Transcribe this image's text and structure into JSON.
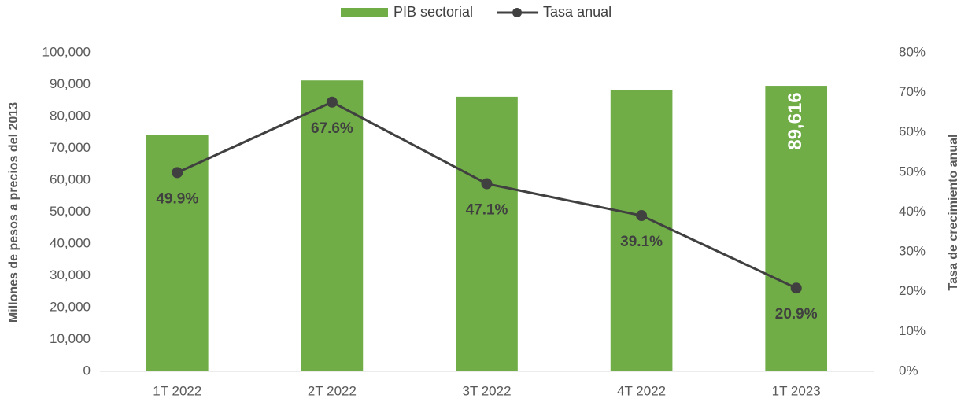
{
  "chart_data": {
    "type": "bar",
    "categories": [
      "1T 2022",
      "2T 2022",
      "3T 2022",
      "4T 2022",
      "1T 2023"
    ],
    "series": [
      {
        "name": "PIB sectorial",
        "type": "bar",
        "color": "#70ad47",
        "values": [
          74100,
          91300,
          86200,
          88200,
          89616
        ],
        "value_labels": [
          null,
          null,
          null,
          null,
          "89,616"
        ]
      },
      {
        "name": "Tasa anual",
        "type": "line",
        "axis": "y2",
        "color": "#404040",
        "values": [
          49.9,
          67.6,
          47.1,
          39.1,
          20.9
        ],
        "value_labels": [
          "49.9%",
          "67.6%",
          "47.1%",
          "39.1%",
          "20.9%"
        ]
      }
    ],
    "ylabel": "Millones de pesos a precios del 2013",
    "y2label": "Tasa de crecimiento anual",
    "ylim": [
      0,
      100000
    ],
    "yticks": [
      0,
      {
        "value": 10000,
        "label": "10,000"
      },
      {
        "value": 20000,
        "label": "20,000"
      },
      {
        "value": 30000,
        "label": "30,000"
      },
      {
        "value": 40000,
        "label": "40,000"
      },
      {
        "value": 50000,
        "label": "50,000"
      },
      {
        "value": 60000,
        "label": "60,000"
      },
      {
        "value": 70000,
        "label": "70,000"
      },
      {
        "value": 80000,
        "label": "80,000"
      },
      {
        "value": 90000,
        "label": "90,000"
      },
      {
        "value": 100000,
        "label": "100,000"
      }
    ],
    "y2lim": [
      0,
      80
    ],
    "y2ticks": [
      {
        "value": 0,
        "label": "0%"
      },
      {
        "value": 10,
        "label": "10%"
      },
      {
        "value": 20,
        "label": "20%"
      },
      {
        "value": 30,
        "label": "30%"
      },
      {
        "value": 40,
        "label": "40%"
      },
      {
        "value": 50,
        "label": "50%"
      },
      {
        "value": 60,
        "label": "60%"
      },
      {
        "value": 70,
        "label": "70%"
      },
      {
        "value": 80,
        "label": "80%"
      }
    ],
    "grid": false,
    "legend": "top"
  }
}
